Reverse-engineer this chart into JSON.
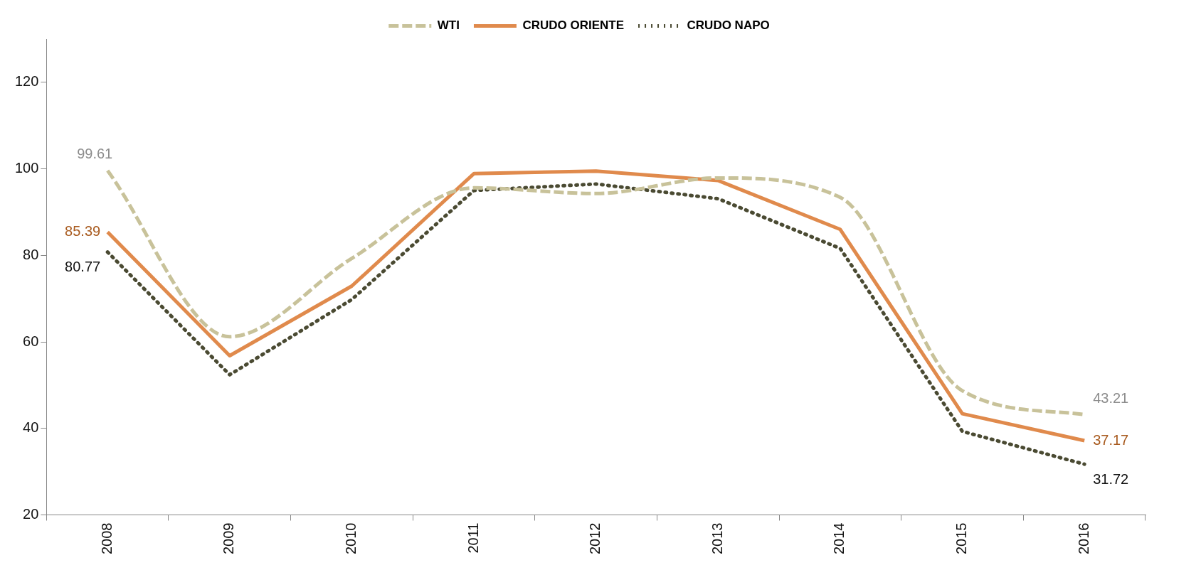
{
  "chart_data": {
    "type": "line",
    "categories": [
      "2008",
      "2009",
      "2010",
      "2011",
      "2012",
      "2013",
      "2014",
      "2015",
      "2016"
    ],
    "series": [
      {
        "name": "WTI",
        "color": "#c8c29a",
        "line_style": "dashed",
        "values": [
          99.61,
          61.2,
          79.3,
          95.6,
          94.3,
          97.9,
          93.4,
          48.7,
          43.21
        ],
        "value_labels": [
          "99.61",
          null,
          null,
          null,
          null,
          null,
          null,
          null,
          "43.21"
        ]
      },
      {
        "name": "CRUDO ORIENTE",
        "color": "#e08a4c",
        "line_style": "solid",
        "values": [
          85.39,
          56.8,
          72.9,
          98.9,
          99.5,
          97.3,
          86.0,
          43.4,
          37.17
        ],
        "value_labels": [
          "85.39",
          null,
          null,
          null,
          null,
          null,
          null,
          null,
          "37.17"
        ]
      },
      {
        "name": "CRUDO NAPO",
        "color": "#4a4a32",
        "line_style": "dotted",
        "values": [
          80.77,
          52.4,
          69.8,
          95.0,
          96.5,
          93.1,
          81.6,
          39.3,
          31.72
        ],
        "value_labels": [
          "80.77",
          null,
          null,
          null,
          null,
          null,
          null,
          null,
          "31.72"
        ]
      }
    ],
    "ylim": [
      20,
      130
    ],
    "yticks": [
      20,
      40,
      60,
      80,
      100,
      120
    ],
    "grid": false,
    "legend": "top",
    "marker": "none"
  }
}
